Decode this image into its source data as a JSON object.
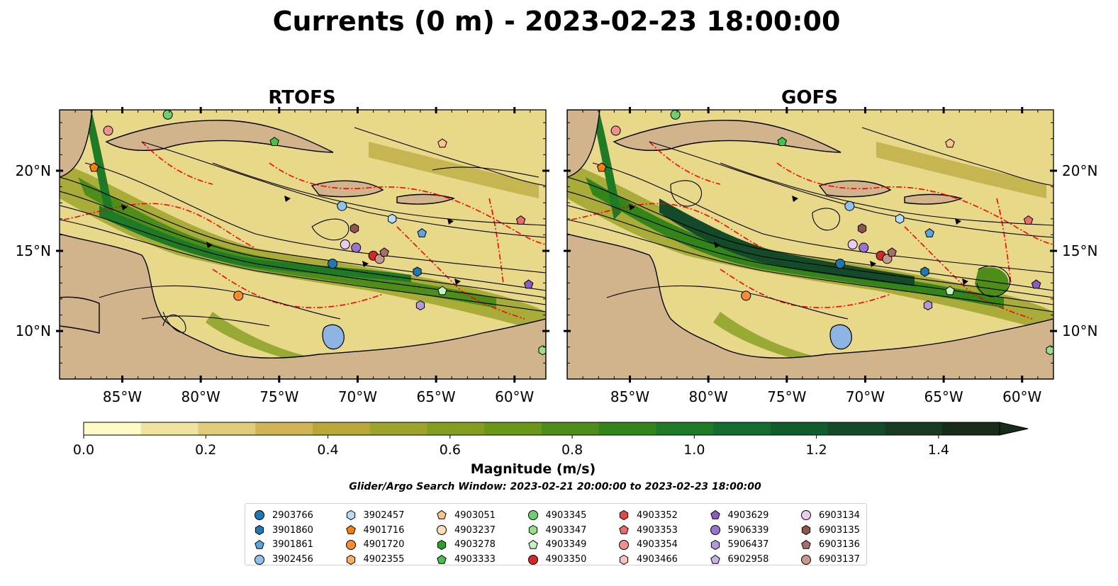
{
  "title": "Currents (0 m) - 2023-02-23 18:00:00",
  "panels": [
    {
      "title": "RTOFS"
    },
    {
      "title": "GOFS"
    }
  ],
  "map": {
    "lon_range": [
      -89,
      -58
    ],
    "lat_range": [
      7,
      23.8
    ],
    "lon_ticks": [
      -85,
      -80,
      -75,
      -70,
      -65,
      -60
    ],
    "lon_tick_labels": [
      "85°W",
      "80°W",
      "75°W",
      "70°W",
      "65°W",
      "60°W"
    ],
    "lat_ticks": [
      10,
      15,
      20
    ],
    "lat_tick_labels": [
      "10°N",
      "15°N",
      "20°N"
    ],
    "colors": {
      "land": "#d2b48c",
      "lake": "#8eb4e3",
      "eez": "#ff0000"
    }
  },
  "colorbar": {
    "label": "Magnitude (m/s)",
    "min": 0.0,
    "max": 1.5,
    "extend": "max",
    "ticks": [
      0.0,
      0.2,
      0.4,
      0.6,
      0.8,
      1.0,
      1.2,
      1.4
    ],
    "tick_labels": [
      "0.0",
      "0.2",
      "0.4",
      "0.6",
      "0.8",
      "1.0",
      "1.2",
      "1.4"
    ],
    "colors": [
      "#fefbc6",
      "#efe3a0",
      "#e0cc7a",
      "#d0b555",
      "#b8a739",
      "#9ea32a",
      "#839e1e",
      "#6b9718",
      "#4f8d1a",
      "#338419",
      "#1f7a26",
      "#146c30",
      "#0f5c2d",
      "#134a29",
      "#163a22",
      "#172b1a"
    ]
  },
  "search_window": "Glider/Argo Search Window: 2023-02-21 20:00:00 to 2023-02-23 18:00:00",
  "legend": [
    {
      "id": "2903766",
      "marker": "circle",
      "color": "#1f77b4"
    },
    {
      "id": "3901860",
      "marker": "hexagon",
      "color": "#1f77b4"
    },
    {
      "id": "3901861",
      "marker": "pentagon",
      "color": "#5aa6e0"
    },
    {
      "id": "3902456",
      "marker": "circle",
      "color": "#8ec1ec"
    },
    {
      "id": "3902457",
      "marker": "hexagon",
      "color": "#b8dcf7"
    },
    {
      "id": "4901716",
      "marker": "pentagon",
      "color": "#ff7f0e"
    },
    {
      "id": "4901720",
      "marker": "circle",
      "color": "#ff8c2e"
    },
    {
      "id": "4902355",
      "marker": "hexagon",
      "color": "#ffad62"
    },
    {
      "id": "4903051",
      "marker": "pentagon",
      "color": "#ffc48e"
    },
    {
      "id": "4903237",
      "marker": "circle",
      "color": "#ffdcb8"
    },
    {
      "id": "4903278",
      "marker": "hexagon",
      "color": "#2ca02c"
    },
    {
      "id": "4903333",
      "marker": "pentagon",
      "color": "#4bbf4b"
    },
    {
      "id": "4903345",
      "marker": "circle",
      "color": "#6fcf6f"
    },
    {
      "id": "4903347",
      "marker": "hexagon",
      "color": "#98df8a"
    },
    {
      "id": "4903349",
      "marker": "pentagon",
      "color": "#c4f2c0"
    },
    {
      "id": "4903350",
      "marker": "circle",
      "color": "#d62728"
    },
    {
      "id": "4903352",
      "marker": "hexagon",
      "color": "#e04848"
    },
    {
      "id": "4903353",
      "marker": "pentagon",
      "color": "#ec6c6c"
    },
    {
      "id": "4903354",
      "marker": "circle",
      "color": "#f09090"
    },
    {
      "id": "4903466",
      "marker": "hexagon",
      "color": "#fbc0c0"
    },
    {
      "id": "4903629",
      "marker": "pentagon",
      "color": "#8c5cc0"
    },
    {
      "id": "5906339",
      "marker": "circle",
      "color": "#9c72cf"
    },
    {
      "id": "5906437",
      "marker": "hexagon",
      "color": "#b597da"
    },
    {
      "id": "6902958",
      "marker": "pentagon",
      "color": "#c9b2e8"
    },
    {
      "id": "6903134",
      "marker": "circle",
      "color": "#e8ccf2"
    },
    {
      "id": "6903135",
      "marker": "hexagon",
      "color": "#8c564b"
    },
    {
      "id": "6903136",
      "marker": "pentagon",
      "color": "#a6706a"
    },
    {
      "id": "6903137",
      "marker": "circle",
      "color": "#c49a90"
    }
  ],
  "floats_rtofs": [
    {
      "id": "4901716",
      "lon": -86.8,
      "lat": 20.2
    },
    {
      "id": "4903354",
      "lon": -85.9,
      "lat": 22.5
    },
    {
      "id": "4903345",
      "lon": -82.1,
      "lat": 23.5
    },
    {
      "id": "4903333",
      "lon": -75.3,
      "lat": 21.8
    },
    {
      "id": "4903051",
      "lon": -64.6,
      "lat": 21.7
    },
    {
      "id": "3902456",
      "lon": -71.0,
      "lat": 17.8
    },
    {
      "id": "3902457",
      "lon": -67.8,
      "lat": 17.0
    },
    {
      "id": "3901861",
      "lon": -65.9,
      "lat": 16.1
    },
    {
      "id": "4903353",
      "lon": -59.6,
      "lat": 16.9
    },
    {
      "id": "6903135",
      "lon": -70.2,
      "lat": 16.4
    },
    {
      "id": "6903134",
      "lon": -70.8,
      "lat": 15.4
    },
    {
      "id": "5906339",
      "lon": -70.1,
      "lat": 15.2
    },
    {
      "id": "4903350",
      "lon": -69.0,
      "lat": 14.7
    },
    {
      "id": "6903137",
      "lon": -68.6,
      "lat": 14.5
    },
    {
      "id": "6903136",
      "lon": -68.3,
      "lat": 14.9
    },
    {
      "id": "2903766",
      "lon": -71.6,
      "lat": 14.2
    },
    {
      "id": "3901860",
      "lon": -66.2,
      "lat": 13.7
    },
    {
      "id": "4901720",
      "lon": -77.6,
      "lat": 12.2
    },
    {
      "id": "4903349",
      "lon": -64.6,
      "lat": 12.5
    },
    {
      "id": "5906437",
      "lon": -66.0,
      "lat": 11.6
    },
    {
      "id": "4903629",
      "lon": -59.1,
      "lat": 12.9
    },
    {
      "id": "4903347",
      "lon": -58.2,
      "lat": 8.8
    }
  ],
  "floats_gofs": [
    {
      "id": "4901716",
      "lon": -86.8,
      "lat": 20.2
    },
    {
      "id": "4903354",
      "lon": -85.9,
      "lat": 22.5
    },
    {
      "id": "4903345",
      "lon": -82.1,
      "lat": 23.5
    },
    {
      "id": "4903333",
      "lon": -75.3,
      "lat": 21.8
    },
    {
      "id": "4903051",
      "lon": -64.6,
      "lat": 21.7
    },
    {
      "id": "3902456",
      "lon": -71.0,
      "lat": 17.8
    },
    {
      "id": "3902457",
      "lon": -67.8,
      "lat": 17.0
    },
    {
      "id": "3901861",
      "lon": -65.9,
      "lat": 16.1
    },
    {
      "id": "4903353",
      "lon": -59.6,
      "lat": 16.9
    },
    {
      "id": "6903135",
      "lon": -70.2,
      "lat": 16.4
    },
    {
      "id": "6903134",
      "lon": -70.8,
      "lat": 15.4
    },
    {
      "id": "5906339",
      "lon": -70.1,
      "lat": 15.2
    },
    {
      "id": "4903350",
      "lon": -69.0,
      "lat": 14.7
    },
    {
      "id": "6903137",
      "lon": -68.6,
      "lat": 14.5
    },
    {
      "id": "6903136",
      "lon": -68.3,
      "lat": 14.9
    },
    {
      "id": "2903766",
      "lon": -71.6,
      "lat": 14.2
    },
    {
      "id": "3901860",
      "lon": -66.2,
      "lat": 13.7
    },
    {
      "id": "4901720",
      "lon": -77.6,
      "lat": 12.2
    },
    {
      "id": "4903349",
      "lon": -64.6,
      "lat": 12.5
    },
    {
      "id": "5906437",
      "lon": -66.0,
      "lat": 11.6
    },
    {
      "id": "4903629",
      "lon": -59.1,
      "lat": 12.9
    },
    {
      "id": "4903347",
      "lon": -58.2,
      "lat": 8.8
    }
  ]
}
